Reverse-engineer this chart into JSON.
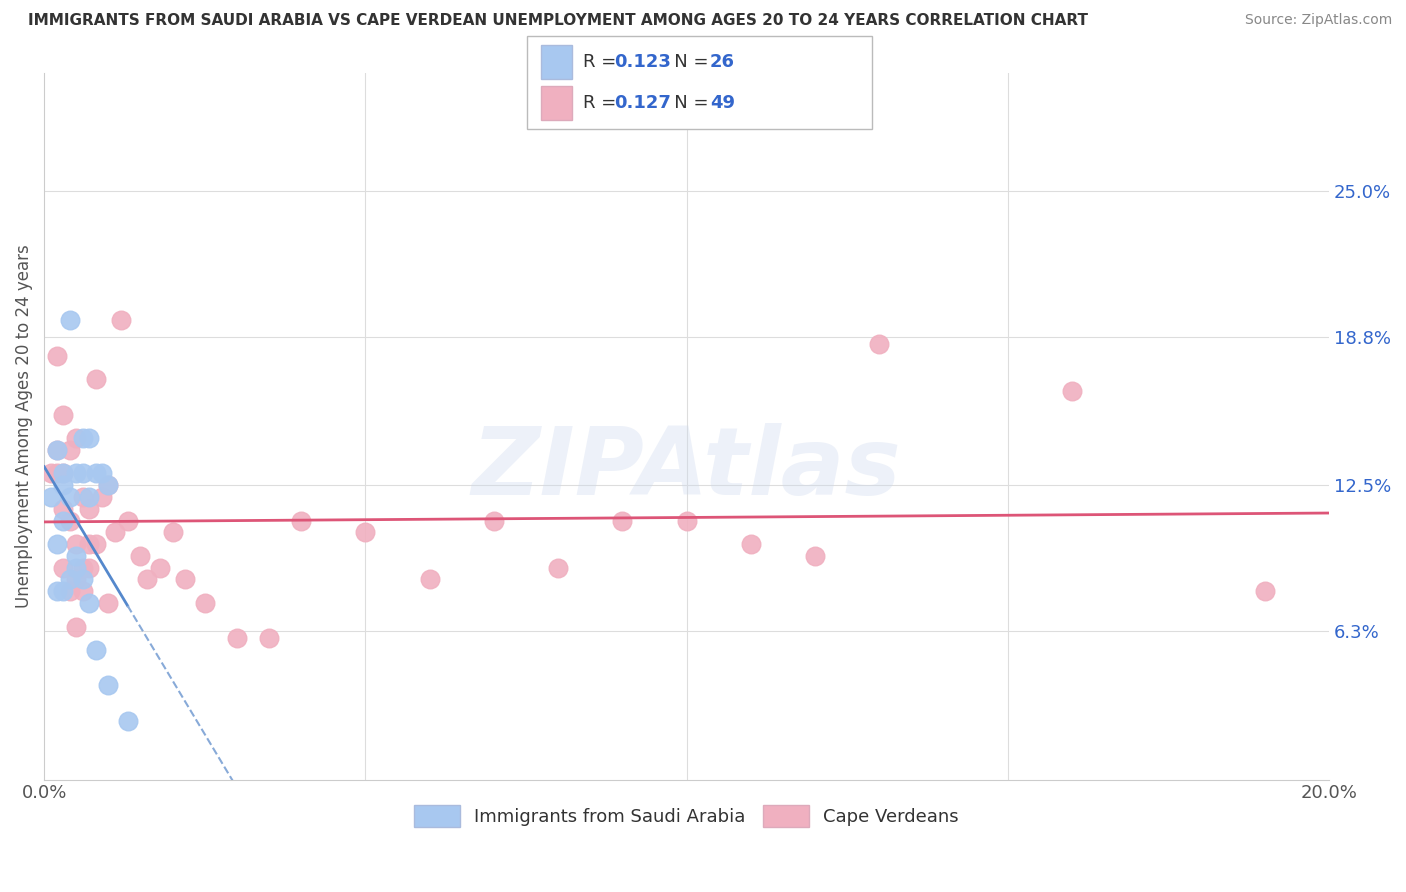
{
  "title": "IMMIGRANTS FROM SAUDI ARABIA VS CAPE VERDEAN UNEMPLOYMENT AMONG AGES 20 TO 24 YEARS CORRELATION CHART",
  "source": "Source: ZipAtlas.com",
  "ylabel": "Unemployment Among Ages 20 to 24 years",
  "xlim": [
    0.0,
    0.2
  ],
  "ylim": [
    0.0,
    0.3
  ],
  "xtick_labels": [
    "0.0%",
    "20.0%"
  ],
  "xtick_positions": [
    0.0,
    0.2
  ],
  "ytick_labels": [
    "6.3%",
    "12.5%",
    "18.8%",
    "25.0%"
  ],
  "ytick_positions": [
    0.063,
    0.125,
    0.188,
    0.25
  ],
  "background_color": "#ffffff",
  "grid_color": "#dddddd",
  "watermark": "ZIPAtlas",
  "blue_color": "#a8c8f0",
  "blue_line_color": "#5588cc",
  "blue_line_dashed_color": "#88aad8",
  "pink_color": "#f0b0c0",
  "pink_line_color": "#dd5577",
  "blue_name": "Immigrants from Saudi Arabia",
  "pink_name": "Cape Verdeans",
  "blue_R": "0.123",
  "blue_N": "26",
  "pink_R": "0.127",
  "pink_N": "49",
  "stat_color": "#3366cc",
  "N_label_color": "#333333",
  "marker_size": 180,
  "blue_x": [
    0.001,
    0.002,
    0.002,
    0.002,
    0.003,
    0.003,
    0.003,
    0.003,
    0.004,
    0.004,
    0.004,
    0.005,
    0.005,
    0.005,
    0.006,
    0.006,
    0.006,
    0.007,
    0.007,
    0.007,
    0.008,
    0.008,
    0.009,
    0.01,
    0.01,
    0.013
  ],
  "blue_y": [
    0.12,
    0.08,
    0.1,
    0.14,
    0.11,
    0.13,
    0.125,
    0.08,
    0.085,
    0.12,
    0.195,
    0.09,
    0.13,
    0.095,
    0.13,
    0.145,
    0.085,
    0.12,
    0.145,
    0.075,
    0.055,
    0.13,
    0.13,
    0.125,
    0.04,
    0.025
  ],
  "pink_x": [
    0.001,
    0.002,
    0.002,
    0.002,
    0.003,
    0.003,
    0.003,
    0.003,
    0.004,
    0.004,
    0.004,
    0.005,
    0.005,
    0.005,
    0.005,
    0.006,
    0.006,
    0.006,
    0.007,
    0.007,
    0.007,
    0.008,
    0.008,
    0.009,
    0.01,
    0.01,
    0.011,
    0.012,
    0.013,
    0.015,
    0.016,
    0.018,
    0.02,
    0.022,
    0.025,
    0.03,
    0.035,
    0.04,
    0.05,
    0.06,
    0.07,
    0.08,
    0.09,
    0.1,
    0.11,
    0.12,
    0.13,
    0.16,
    0.19
  ],
  "pink_y": [
    0.13,
    0.14,
    0.18,
    0.13,
    0.155,
    0.13,
    0.115,
    0.09,
    0.14,
    0.11,
    0.08,
    0.145,
    0.085,
    0.1,
    0.065,
    0.12,
    0.09,
    0.08,
    0.115,
    0.09,
    0.1,
    0.17,
    0.1,
    0.12,
    0.125,
    0.075,
    0.105,
    0.195,
    0.11,
    0.095,
    0.085,
    0.09,
    0.105,
    0.085,
    0.075,
    0.06,
    0.06,
    0.11,
    0.105,
    0.085,
    0.11,
    0.09,
    0.11,
    0.11,
    0.1,
    0.095,
    0.185,
    0.165,
    0.08
  ]
}
